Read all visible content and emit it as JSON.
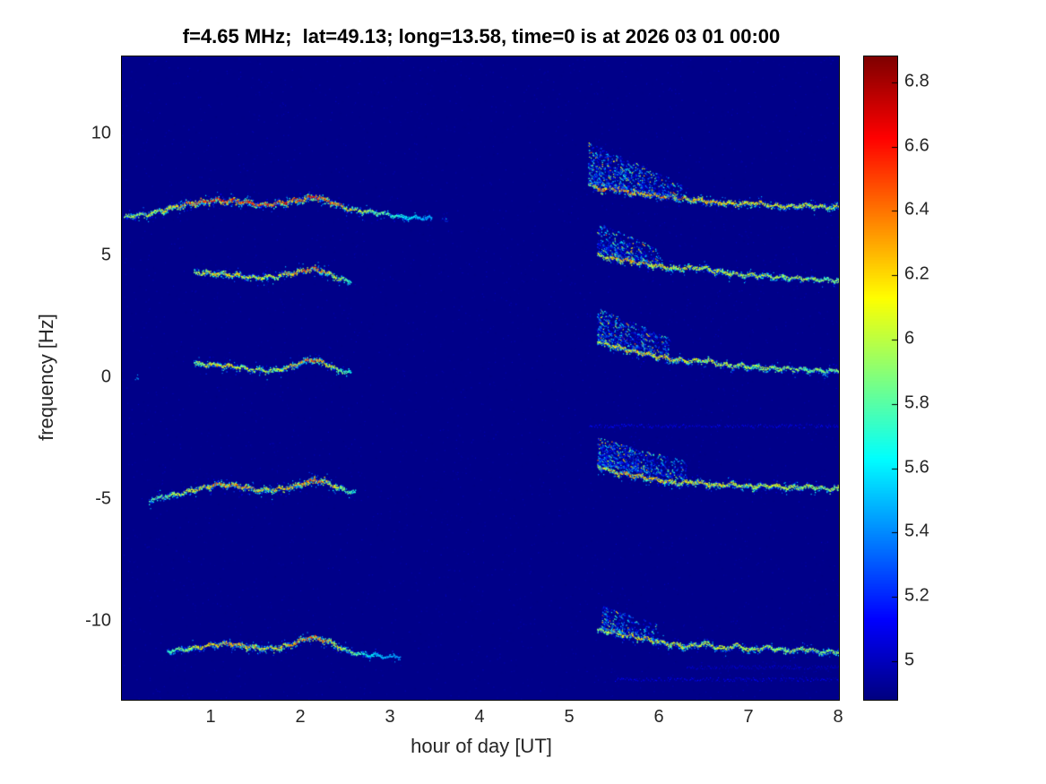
{
  "chart_data": {
    "type": "heatmap",
    "title": "f=4.65 MHz;  lat=49.13; long=13.58, time=0 is at 2026 03 01 00:00",
    "xlabel": "hour of day [UT]",
    "ylabel": "frequency [Hz]",
    "xlim": [
      0,
      8
    ],
    "ylim": [
      -13.2,
      13.2
    ],
    "xticks": [
      1,
      2,
      3,
      4,
      5,
      6,
      7,
      8
    ],
    "yticks": [
      10,
      5,
      0,
      -5,
      -10
    ],
    "colormap": "jet",
    "background_value": 4.9,
    "colorbar": {
      "range": [
        4.88,
        6.88
      ],
      "ticks": [
        6.8,
        6.6,
        6.4,
        6.2,
        6,
        5.8,
        5.6,
        5.4,
        5.2,
        5
      ],
      "position": "right"
    },
    "traces": [
      {
        "name": "doppler-band +7Hz segment1",
        "points": [
          [
            0.02,
            6.62,
            0.45
          ],
          [
            0.3,
            6.75,
            0.55
          ],
          [
            0.55,
            7.0,
            0.7
          ],
          [
            0.8,
            7.2,
            0.9
          ],
          [
            1.05,
            7.3,
            1.0
          ],
          [
            1.3,
            7.25,
            1.0
          ],
          [
            1.55,
            7.1,
            0.85
          ],
          [
            1.8,
            7.2,
            0.9
          ],
          [
            2.0,
            7.35,
            1.0
          ],
          [
            2.15,
            7.45,
            1.0
          ],
          [
            2.35,
            7.2,
            0.85
          ],
          [
            2.5,
            6.95,
            0.7
          ],
          [
            2.7,
            6.85,
            0.5
          ],
          [
            2.95,
            6.72,
            0.35
          ],
          [
            3.2,
            6.6,
            0.2
          ],
          [
            3.45,
            6.55,
            0.08
          ]
        ]
      },
      {
        "name": "doppler-band +7Hz segment2",
        "points": [
          [
            5.2,
            7.95,
            0.55
          ],
          [
            5.35,
            7.75,
            0.8
          ],
          [
            5.5,
            7.8,
            0.9
          ],
          [
            5.65,
            7.62,
            0.85
          ],
          [
            5.85,
            7.55,
            0.8
          ],
          [
            6.05,
            7.45,
            0.8
          ],
          [
            6.25,
            7.38,
            0.75
          ],
          [
            6.45,
            7.3,
            0.7
          ],
          [
            6.65,
            7.2,
            0.7
          ],
          [
            6.85,
            7.15,
            0.65
          ],
          [
            7.05,
            7.2,
            0.65
          ],
          [
            7.25,
            7.1,
            0.65
          ],
          [
            7.45,
            7.05,
            0.6
          ],
          [
            7.65,
            7.1,
            0.6
          ],
          [
            7.85,
            7.0,
            0.6
          ],
          [
            8.0,
            7.05,
            0.6
          ]
        ]
      },
      {
        "name": "doppler-band +4Hz segment1",
        "points": [
          [
            0.8,
            4.35,
            0.45
          ],
          [
            1.0,
            4.3,
            0.65
          ],
          [
            1.25,
            4.25,
            0.65
          ],
          [
            1.5,
            4.12,
            0.55
          ],
          [
            1.7,
            4.18,
            0.6
          ],
          [
            1.9,
            4.3,
            0.75
          ],
          [
            2.1,
            4.5,
            0.9
          ],
          [
            2.25,
            4.38,
            0.75
          ],
          [
            2.4,
            4.1,
            0.55
          ],
          [
            2.55,
            3.95,
            0.25
          ]
        ]
      },
      {
        "name": "doppler-band +4Hz segment2",
        "points": [
          [
            5.3,
            5.05,
            0.55
          ],
          [
            5.45,
            4.92,
            0.7
          ],
          [
            5.6,
            4.85,
            0.8
          ],
          [
            5.8,
            4.7,
            0.7
          ],
          [
            6.0,
            4.6,
            0.65
          ],
          [
            6.2,
            4.5,
            0.6
          ],
          [
            6.45,
            4.55,
            0.6
          ],
          [
            6.7,
            4.35,
            0.6
          ],
          [
            6.9,
            4.25,
            0.55
          ],
          [
            7.1,
            4.2,
            0.55
          ],
          [
            7.35,
            4.15,
            0.5
          ],
          [
            7.6,
            4.08,
            0.5
          ],
          [
            7.8,
            4.05,
            0.45
          ],
          [
            8.0,
            4.0,
            0.45
          ]
        ]
      },
      {
        "name": "doppler-band +0.5Hz segment1",
        "points": [
          [
            0.8,
            0.6,
            0.45
          ],
          [
            1.0,
            0.55,
            0.65
          ],
          [
            1.25,
            0.48,
            0.65
          ],
          [
            1.5,
            0.32,
            0.5
          ],
          [
            1.7,
            0.3,
            0.5
          ],
          [
            1.9,
            0.5,
            0.7
          ],
          [
            2.1,
            0.78,
            0.9
          ],
          [
            2.25,
            0.65,
            0.7
          ],
          [
            2.4,
            0.35,
            0.5
          ],
          [
            2.55,
            0.2,
            0.25
          ]
        ]
      },
      {
        "name": "doppler-band +0.5Hz segment2",
        "points": [
          [
            5.3,
            1.5,
            0.5
          ],
          [
            5.5,
            1.3,
            0.7
          ],
          [
            5.7,
            1.1,
            0.75
          ],
          [
            5.9,
            0.95,
            0.7
          ],
          [
            6.1,
            0.8,
            0.65
          ],
          [
            6.3,
            0.7,
            0.6
          ],
          [
            6.5,
            0.75,
            0.6
          ],
          [
            6.7,
            0.55,
            0.55
          ],
          [
            6.9,
            0.5,
            0.55
          ],
          [
            7.1,
            0.45,
            0.5
          ],
          [
            7.35,
            0.4,
            0.5
          ],
          [
            7.6,
            0.35,
            0.45
          ],
          [
            7.8,
            0.3,
            0.45
          ],
          [
            8.0,
            0.3,
            0.45
          ]
        ]
      },
      {
        "name": "doppler-band -4.5Hz segment1",
        "points": [
          [
            0.3,
            -5.0,
            0.35
          ],
          [
            0.55,
            -4.8,
            0.5
          ],
          [
            0.8,
            -4.6,
            0.6
          ],
          [
            1.05,
            -4.35,
            0.8
          ],
          [
            1.3,
            -4.42,
            0.75
          ],
          [
            1.55,
            -4.6,
            0.65
          ],
          [
            1.75,
            -4.55,
            0.65
          ],
          [
            1.95,
            -4.4,
            0.8
          ],
          [
            2.15,
            -4.15,
            0.9
          ],
          [
            2.3,
            -4.3,
            0.75
          ],
          [
            2.45,
            -4.55,
            0.5
          ],
          [
            2.6,
            -4.7,
            0.25
          ]
        ]
      },
      {
        "name": "doppler-band -4.5Hz segment2",
        "points": [
          [
            5.3,
            -3.6,
            0.5
          ],
          [
            5.45,
            -3.8,
            0.7
          ],
          [
            5.6,
            -3.92,
            0.8
          ],
          [
            5.8,
            -4.05,
            0.75
          ],
          [
            6.0,
            -4.2,
            0.7
          ],
          [
            6.2,
            -4.3,
            0.65
          ],
          [
            6.4,
            -4.25,
            0.65
          ],
          [
            6.6,
            -4.4,
            0.65
          ],
          [
            6.8,
            -4.35,
            0.6
          ],
          [
            7.0,
            -4.45,
            0.6
          ],
          [
            7.2,
            -4.4,
            0.55
          ],
          [
            7.45,
            -4.5,
            0.55
          ],
          [
            7.7,
            -4.45,
            0.5
          ],
          [
            7.85,
            -4.55,
            0.5
          ],
          [
            8.0,
            -4.5,
            0.5
          ]
        ]
      },
      {
        "name": "doppler-band -11Hz segment1",
        "points": [
          [
            0.5,
            -11.2,
            0.3
          ],
          [
            0.75,
            -11.1,
            0.5
          ],
          [
            1.0,
            -10.95,
            0.7
          ],
          [
            1.2,
            -10.88,
            0.8
          ],
          [
            1.45,
            -11.05,
            0.65
          ],
          [
            1.7,
            -11.1,
            0.6
          ],
          [
            1.9,
            -10.9,
            0.75
          ],
          [
            2.1,
            -10.62,
            0.9
          ],
          [
            2.3,
            -10.8,
            0.75
          ],
          [
            2.45,
            -11.1,
            0.55
          ],
          [
            2.6,
            -11.3,
            0.35
          ],
          [
            2.85,
            -11.4,
            0.15
          ],
          [
            3.1,
            -11.45,
            0.06
          ]
        ]
      },
      {
        "name": "doppler-band -11Hz segment2",
        "points": [
          [
            5.3,
            -10.35,
            0.5
          ],
          [
            5.5,
            -10.45,
            0.65
          ],
          [
            5.7,
            -10.6,
            0.65
          ],
          [
            5.9,
            -10.75,
            0.65
          ],
          [
            6.1,
            -10.9,
            0.6
          ],
          [
            6.3,
            -11.0,
            0.6
          ],
          [
            6.5,
            -10.9,
            0.55
          ],
          [
            6.7,
            -11.1,
            0.55
          ],
          [
            6.85,
            -10.95,
            0.55
          ],
          [
            7.0,
            -11.15,
            0.55
          ],
          [
            7.2,
            -11.05,
            0.5
          ],
          [
            7.4,
            -11.2,
            0.5
          ],
          [
            7.6,
            -11.1,
            0.5
          ],
          [
            7.8,
            -11.25,
            0.45
          ],
          [
            8.0,
            -11.2,
            0.45
          ]
        ]
      }
    ],
    "clouds": [
      {
        "t0": 5.2,
        "t1": 6.25,
        "top0": 9.7,
        "top1": 8.0,
        "bot0": 8.0,
        "bot1": 7.4,
        "density": 1.0
      },
      {
        "t0": 5.3,
        "t1": 6.0,
        "top0": 6.4,
        "top1": 5.3,
        "bot0": 5.15,
        "bot1": 4.7,
        "density": 0.7
      },
      {
        "t0": 5.3,
        "t1": 6.1,
        "top0": 2.9,
        "top1": 1.7,
        "bot0": 1.6,
        "bot1": 0.95,
        "density": 0.8
      },
      {
        "t0": 5.3,
        "t1": 6.3,
        "top0": -2.4,
        "top1": -3.4,
        "bot0": -3.5,
        "bot1": -4.15,
        "density": 0.9
      },
      {
        "t0": 5.35,
        "t1": 6.0,
        "top0": -9.3,
        "top1": -10.1,
        "bot0": -10.25,
        "bot1": -10.8,
        "density": 0.6
      }
    ],
    "faint_lines": [
      {
        "t0": 5.2,
        "t1": 8.0,
        "f": -1.95,
        "s": 0.5
      },
      {
        "t0": 5.5,
        "t1": 8.0,
        "f": -12.35,
        "s": 0.45
      },
      {
        "t0": 6.3,
        "t1": 8.0,
        "f": -11.85,
        "s": 0.3
      }
    ],
    "specks": [
      [
        3.6,
        6.55
      ],
      [
        3.35,
        6.6
      ],
      [
        0.15,
        0.05
      ]
    ]
  }
}
